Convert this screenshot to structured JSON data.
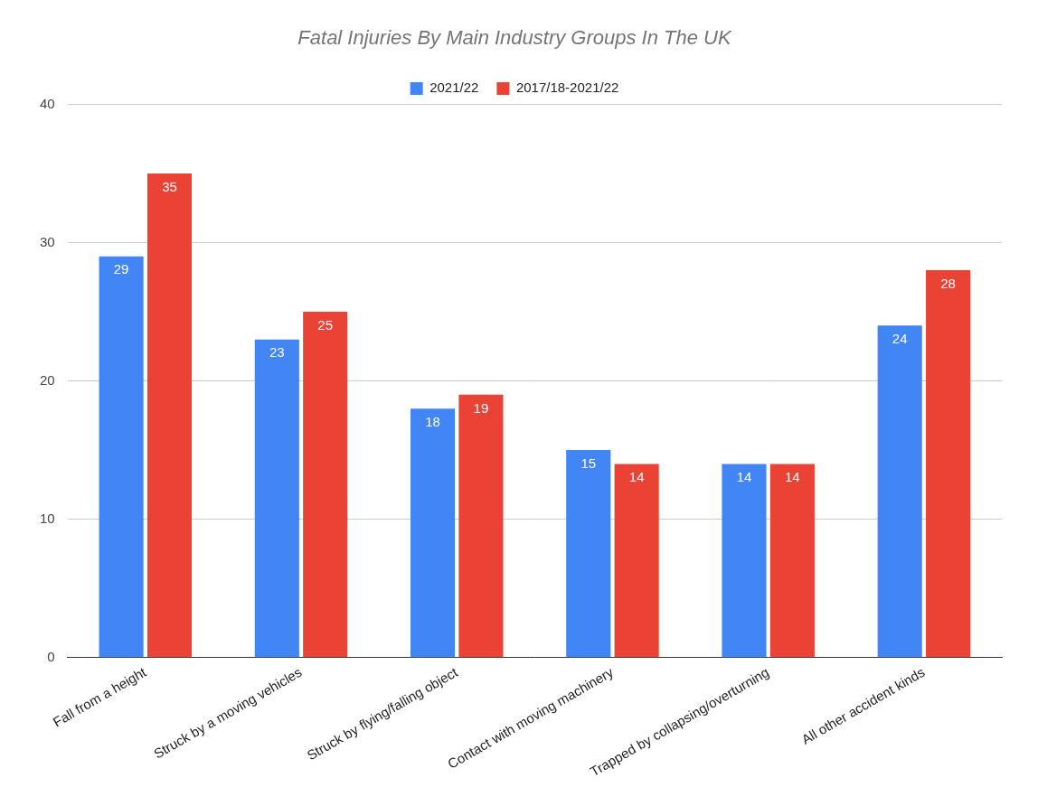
{
  "chart_data": {
    "type": "bar",
    "title": "Fatal Injuries By Main Industry Groups In The UK",
    "categories": [
      "Fall from a height",
      "Struck by a moving vehicles",
      "Struck by flying/falling object",
      "Contact with moving machinery",
      "Trapped by collapsing/overturning",
      "All other accident kinds"
    ],
    "series": [
      {
        "name": "2021/22",
        "color": "#4285f4",
        "values": [
          29,
          23,
          18,
          15,
          14,
          24
        ]
      },
      {
        "name": "2017/18-2021/22",
        "color": "#ea4335",
        "values": [
          35,
          25,
          19,
          14,
          14,
          28
        ]
      }
    ],
    "ylim": [
      0,
      40
    ],
    "yticks": [
      0,
      10,
      20,
      30,
      40
    ],
    "grid": true,
    "legend": "top",
    "data_labels": true
  }
}
